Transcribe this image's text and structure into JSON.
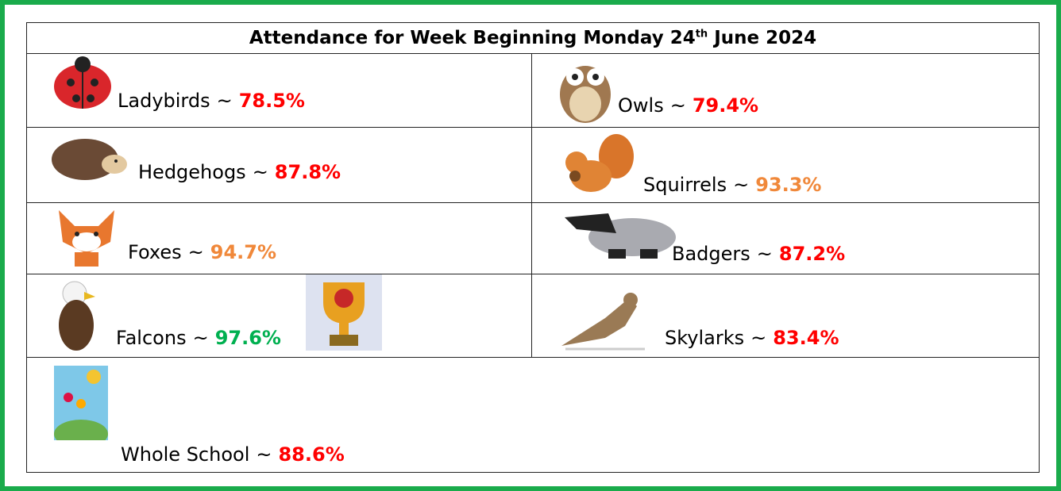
{
  "header": {
    "title_before": "Attendance for Week Beginning Monday 24",
    "title_sup": "th",
    "title_after": "June 2024"
  },
  "classes": [
    {
      "name": "Ladybirds",
      "separator": "~",
      "value": "78.5%",
      "color": "#ff0000"
    },
    {
      "name": "Owls",
      "separator": "~",
      "value": "79.4%",
      "color": "#ff0000"
    },
    {
      "name": "Hedgehogs",
      "separator": "~",
      "value": "87.8%",
      "color": "#ff0000"
    },
    {
      "name": "Squirrels",
      "separator": "~",
      "value": "93.3%",
      "color": "#f0883a"
    },
    {
      "name": "Foxes",
      "separator": "~",
      "value": "94.7%",
      "color": "#f0883a"
    },
    {
      "name": "Badgers",
      "separator": "~",
      "value": "87.2%",
      "color": "#ff0000"
    },
    {
      "name": "Falcons",
      "separator": "~",
      "value": "97.6%",
      "color": "#00b050"
    },
    {
      "name": "Skylarks",
      "separator": "~",
      "value": "83.4%",
      "color": "#ff0000"
    }
  ],
  "whole_school": {
    "name": "Whole School",
    "separator": "~",
    "value": "88.6%",
    "color": "#ff0000"
  }
}
